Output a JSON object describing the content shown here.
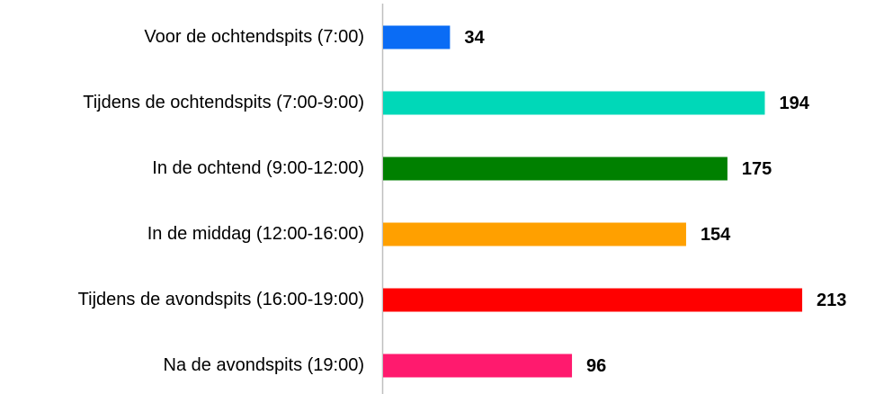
{
  "chart_data": {
    "type": "bar",
    "orientation": "horizontal",
    "categories": [
      "Voor de ochtendspits (7:00)",
      "Tijdens de ochtendspits (7:00-9:00)",
      "In de ochtend (9:00-12:00)",
      "In de middag (12:00-16:00)",
      "Tijdens de avondspits (16:00-19:00)",
      "Na de avondspits (19:00)"
    ],
    "values": [
      34,
      194,
      175,
      154,
      213,
      96
    ],
    "colors": [
      "#0a6cf5",
      "#00d8b8",
      "#008000",
      "#ffa000",
      "#ff0000",
      "#ff1a6e"
    ],
    "xlim": [
      0,
      250
    ]
  }
}
